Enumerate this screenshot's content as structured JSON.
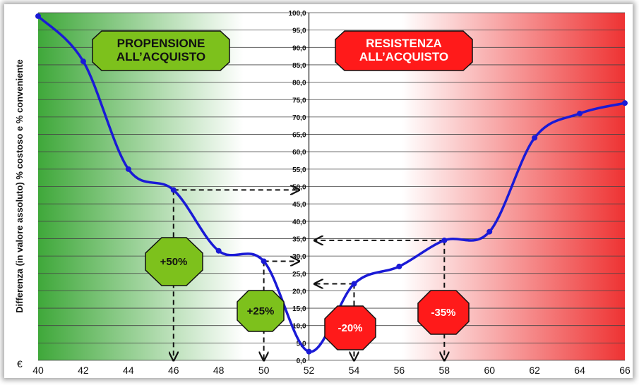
{
  "chart_data": {
    "type": "line",
    "ylabel": "Differenza (in valore assoluto) % costoso e % conveniente",
    "currency_label": "€",
    "x": [
      40,
      42,
      44,
      46,
      48,
      50,
      52,
      54,
      56,
      58,
      60,
      62,
      64,
      66
    ],
    "xlim": [
      40,
      66
    ],
    "ylim": [
      0,
      100
    ],
    "x_ticks": [
      "40",
      "42",
      "44",
      "46",
      "48",
      "50",
      "52",
      "54",
      "56",
      "58",
      "60",
      "62",
      "64",
      "66"
    ],
    "y_ticks": [
      "0,0",
      "5,0",
      "10,0",
      "15,0",
      "20,0",
      "25,0",
      "30,0",
      "35,0",
      "40,0",
      "45,0",
      "50,0",
      "55,0",
      "60,0",
      "65,0",
      "70,0",
      "75,0",
      "80,0",
      "85,0",
      "90,0",
      "95,0",
      "100,0"
    ],
    "series": [
      {
        "values": [
          99,
          86,
          55,
          49,
          31.5,
          28.5,
          2.5,
          22,
          27,
          34.5,
          37,
          64,
          71,
          74
        ],
        "color": "#1a1ad6"
      }
    ],
    "grid": true,
    "zones": [
      {
        "label_lines": [
          "PROPENSIONE",
          "ALL’ACQUISTO"
        ],
        "color": "#7dc11c"
      },
      {
        "label_lines": [
          "RESISTENZA",
          "ALL’ACQUISTO"
        ],
        "color": "#ff1a1a"
      }
    ],
    "annotations": [
      {
        "text": "+50%",
        "x": 46,
        "y": 49,
        "color": "#7dc11c"
      },
      {
        "text": "+25%",
        "x": 50,
        "y": 28.5,
        "color": "#7dc11c"
      },
      {
        "text": "-20%",
        "x": 54,
        "y": 22,
        "color": "#ff1a1a"
      },
      {
        "text": "-35%",
        "x": 58,
        "y": 34.5,
        "color": "#ff1a1a"
      }
    ]
  }
}
